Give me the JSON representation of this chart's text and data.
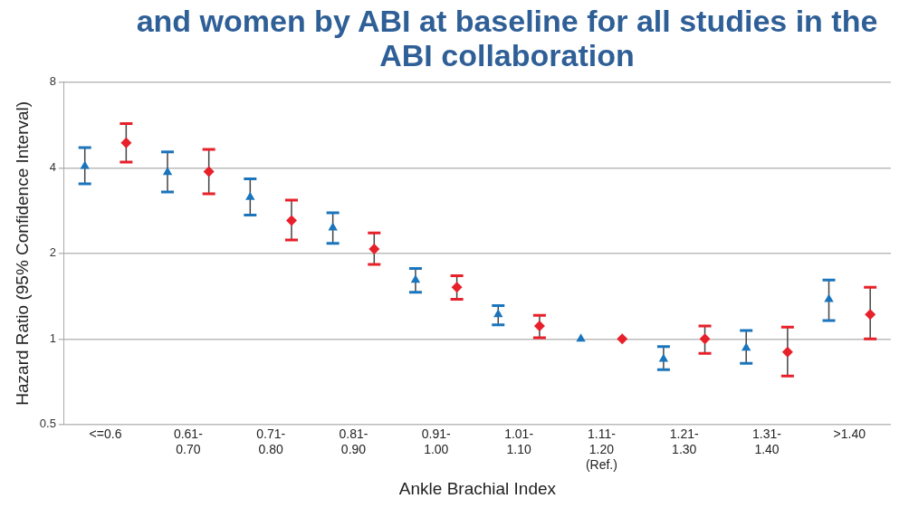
{
  "chart_data": {
    "type": "scatter",
    "title": "and women by ABI at baseline for all studies in the ABI collaboration",
    "xlabel": "Ankle Brachial Index",
    "ylabel": "Hazard Ratio (95% Confidence Interval)",
    "categories": [
      "<=0.6",
      "0.61-\n0.70",
      "0.71-\n0.80",
      "0.81-\n0.90",
      "0.91-\n1.00",
      "1.01-\n1.10",
      "1.11-\n1.20\n(Ref.)",
      "1.21-\n1.30",
      "1.31-\n1.40",
      ">1.40"
    ],
    "series": [
      {
        "color": "#1b75bc",
        "marker": "triangle",
        "values": [
          4.05,
          3.86,
          3.15,
          2.46,
          1.61,
          1.22,
          1,
          0.85,
          0.93,
          1.38
        ],
        "errors": [
          [
            3.51,
            4.71
          ],
          [
            3.29,
            4.55
          ],
          [
            2.73,
            3.66
          ],
          [
            2.17,
            2.78
          ],
          [
            1.46,
            1.77
          ],
          [
            1.12,
            1.31
          ],
          null,
          [
            0.78,
            0.94
          ],
          [
            0.82,
            1.07
          ],
          [
            1.16,
            1.61
          ]
        ]
      },
      {
        "color": "#e8202a",
        "marker": "diamond",
        "values": [
          4.9,
          3.88,
          2.61,
          2.07,
          1.52,
          1.11,
          1,
          1.0,
          0.9,
          1.22
        ],
        "errors": [
          [
            4.19,
            5.72
          ],
          [
            3.24,
            4.64
          ],
          [
            2.23,
            3.08
          ],
          [
            1.83,
            2.36
          ],
          [
            1.38,
            1.67
          ],
          [
            1.01,
            1.21
          ],
          null,
          [
            0.89,
            1.11
          ],
          [
            0.74,
            1.1
          ],
          [
            1.0,
            1.52
          ]
        ]
      }
    ],
    "log": "y",
    "ylim": [
      0.5,
      8
    ],
    "yticks": [
      0.5,
      1,
      2,
      4,
      8
    ],
    "grid": "y"
  }
}
